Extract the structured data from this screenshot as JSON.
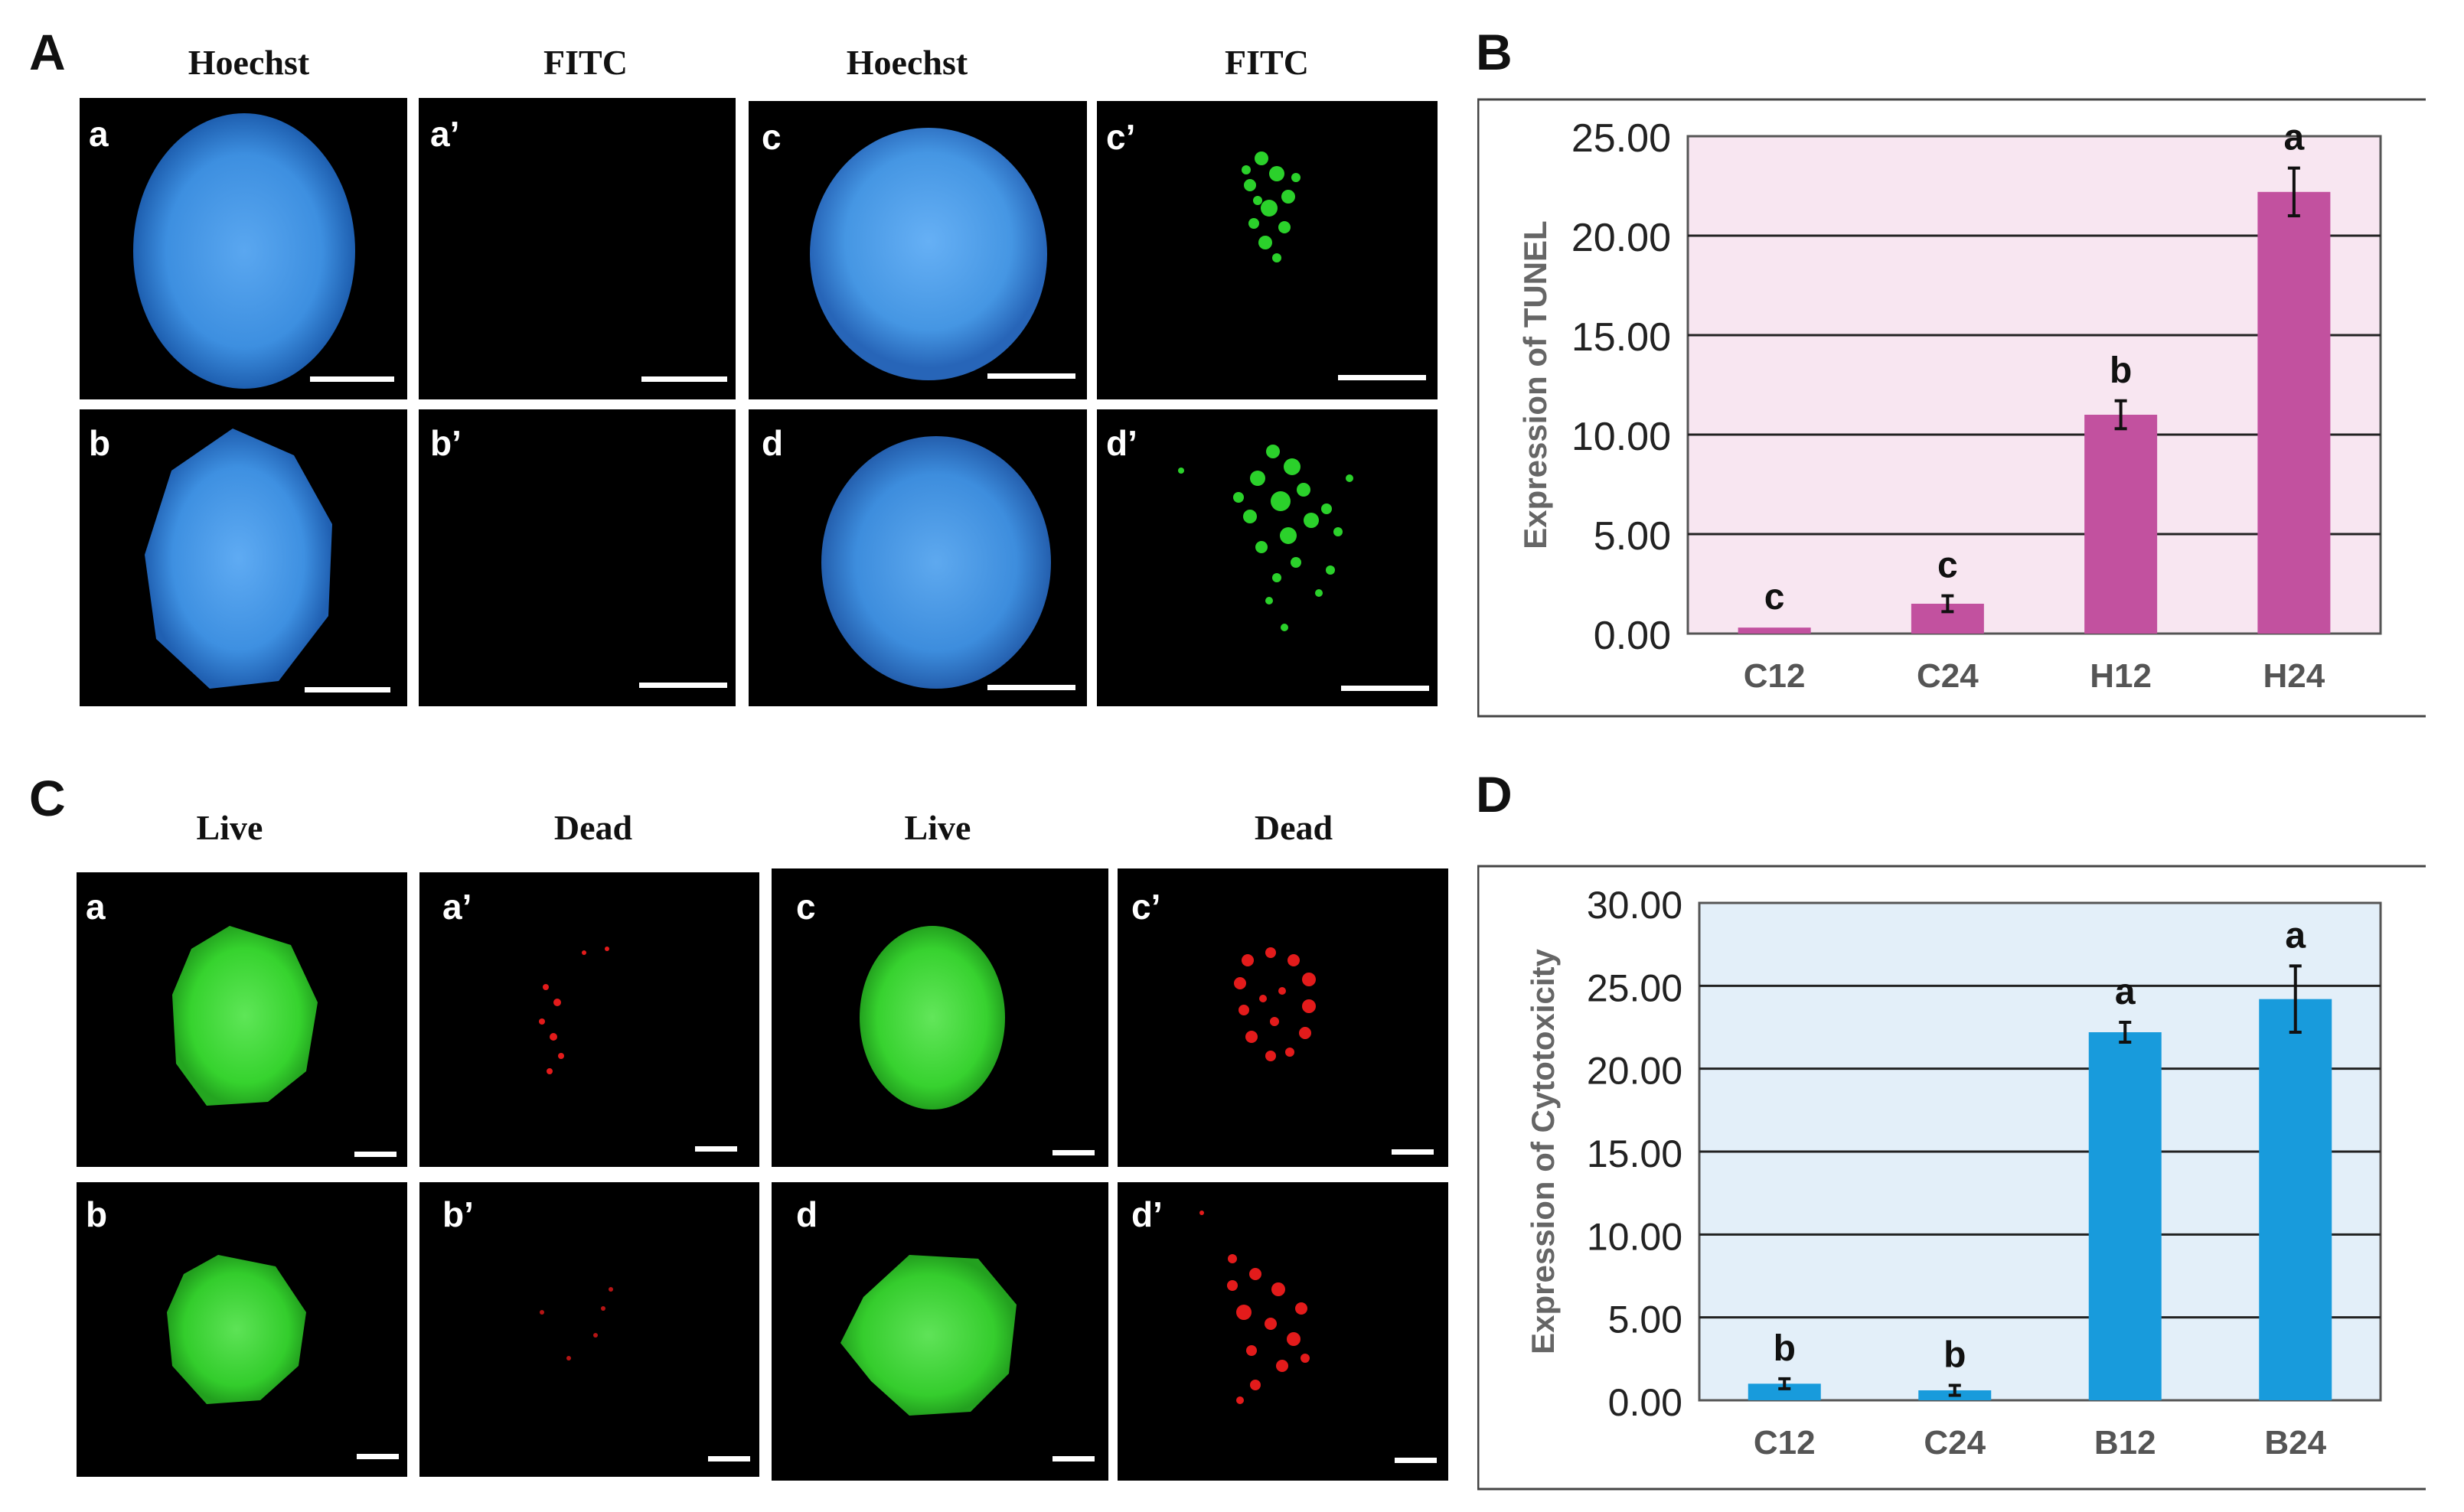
{
  "panels": {
    "A": {
      "letter": "A",
      "headers": [
        "Hoechst",
        "FITC",
        "Hoechst",
        "FITC"
      ],
      "tiles": [
        "a",
        "a’",
        "c",
        "c’",
        "b",
        "b’",
        "d",
        "d’"
      ]
    },
    "B": {
      "letter": "B"
    },
    "C": {
      "letter": "C",
      "headers": [
        "Live",
        "Dead",
        "Live",
        "Dead"
      ],
      "tiles": [
        "a",
        "a’",
        "c",
        "c’",
        "b",
        "b’",
        "d",
        "d’"
      ]
    },
    "D": {
      "letter": "D"
    }
  },
  "colors": {
    "hoechst": "#3d8fe0",
    "fitc": "#2bd12b",
    "live": "#36d32e",
    "dead": "#e31b1b",
    "tunel_bar": "#c2519f",
    "tunel_bg": "#f8e6f1",
    "cyto_bar": "#189bdc",
    "cyto_bg": "#e3eff9"
  },
  "chart_data": [
    {
      "type": "bar",
      "panel": "B",
      "categories": [
        "C12",
        "C24",
        "H12",
        "H24"
      ],
      "values": [
        0.3,
        1.5,
        11.0,
        22.2
      ],
      "errors": [
        0.0,
        0.4,
        0.7,
        1.2
      ],
      "significance": [
        "c",
        "c",
        "b",
        "a"
      ],
      "ylabel": "Expression of TUNEL",
      "ylim": [
        0,
        25
      ],
      "yticks": [
        "0.00",
        "5.00",
        "10.00",
        "15.00",
        "20.00",
        "25.00"
      ],
      "grid": true
    },
    {
      "type": "bar",
      "panel": "D",
      "categories": [
        "C12",
        "C24",
        "B12",
        "B24"
      ],
      "values": [
        1.0,
        0.6,
        22.2,
        24.2
      ],
      "errors": [
        0.3,
        0.3,
        0.6,
        2.0
      ],
      "significance": [
        "b",
        "b",
        "a",
        "a"
      ],
      "ylabel": "Expression of Cytotoxicity",
      "ylim": [
        0,
        30
      ],
      "yticks": [
        "0.00",
        "5.00",
        "10.00",
        "15.00",
        "20.00",
        "25.00",
        "30.00"
      ],
      "grid": true
    }
  ]
}
